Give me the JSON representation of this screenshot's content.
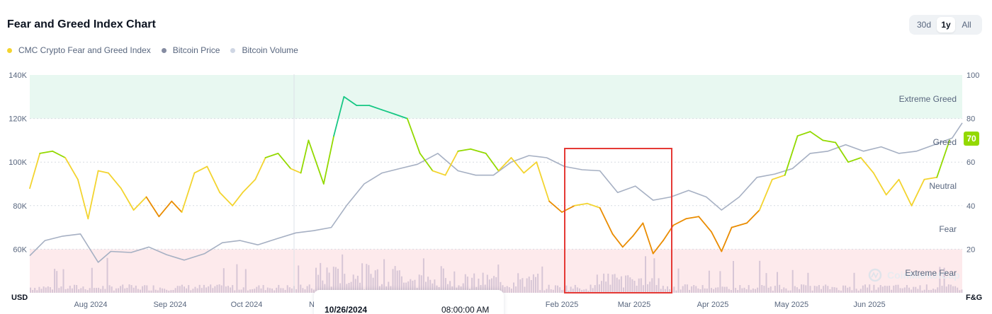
{
  "title": "Fear and Greed Index Chart",
  "range_buttons": [
    {
      "label": "30d",
      "active": false
    },
    {
      "label": "1y",
      "active": true
    },
    {
      "label": "All",
      "active": false
    }
  ],
  "legend": [
    {
      "label": "CMC Crypto Fear and Greed Index",
      "color": "#f3d42f"
    },
    {
      "label": "Bitcoin Price",
      "color": "#858ca2"
    },
    {
      "label": "Bitcoin Volume",
      "color": "#cfd6e4"
    }
  ],
  "current_index_badge": "70",
  "tooltip": {
    "date": "10/26/2024",
    "time": "08:00:00 AM"
  },
  "watermark": "CoinMarketCap",
  "colors": {
    "extreme_greed": "#16c784",
    "greed": "#93d900",
    "neutral": "#f3d42f",
    "fear": "#ea8c00",
    "extreme_fear": "#ea3943",
    "price_line": "#a6b0c3",
    "volume": "#d7c6d6",
    "highlight_box": "#e53935"
  },
  "chart_data": {
    "type": "line",
    "x_axis": {
      "ticks": [
        "Aug 2024",
        "Sep 2024",
        "Oct 2024",
        "N",
        "Feb 2025",
        "Mar 2025",
        "Apr 2025",
        "May 2025",
        "Jun 2025"
      ]
    },
    "y_left": {
      "unit": "USD",
      "ticks": [
        "140K",
        "120K",
        "100K",
        "80K",
        "60K"
      ],
      "range": [
        40000,
        140000
      ]
    },
    "y_right": {
      "unit": "F&G",
      "ticks": [
        "100",
        "80",
        "60",
        "40",
        "20"
      ],
      "range": [
        0,
        100
      ]
    },
    "zones": [
      {
        "label": "Extreme Greed",
        "range": [
          80,
          100
        ]
      },
      {
        "label": "Greed",
        "range": [
          60,
          80
        ]
      },
      {
        "label": "Neutral",
        "range": [
          40,
          60
        ]
      },
      {
        "label": "Fear",
        "range": [
          20,
          40
        ]
      },
      {
        "label": "Extreme Fear",
        "range": [
          0,
          20
        ]
      }
    ],
    "series": [
      {
        "name": "CMC Crypto Fear and Greed Index",
        "x": [
          "2024-07-09",
          "2024-07-13",
          "2024-07-18",
          "2024-07-23",
          "2024-07-28",
          "2024-08-01",
          "2024-08-05",
          "2024-08-09",
          "2024-08-14",
          "2024-08-19",
          "2024-08-24",
          "2024-08-29",
          "2024-09-03",
          "2024-09-07",
          "2024-09-12",
          "2024-09-17",
          "2024-09-22",
          "2024-09-27",
          "2024-10-01",
          "2024-10-06",
          "2024-10-10",
          "2024-10-15",
          "2024-10-20",
          "2024-10-24",
          "2024-10-27",
          "2024-11-02",
          "2024-11-06",
          "2024-11-10",
          "2024-11-15",
          "2024-11-20",
          "2024-11-25",
          "2024-11-30",
          "2024-12-05",
          "2024-12-10",
          "2024-12-15",
          "2024-12-20",
          "2024-12-25",
          "2024-12-30",
          "2025-01-05",
          "2025-01-10",
          "2025-01-15",
          "2025-01-20",
          "2025-01-25",
          "2025-01-30",
          "2025-02-04",
          "2025-02-09",
          "2025-02-14",
          "2025-02-19",
          "2025-02-24",
          "2025-02-28",
          "2025-03-04",
          "2025-03-08",
          "2025-03-12",
          "2025-03-16",
          "2025-03-20",
          "2025-03-25",
          "2025-03-30",
          "2025-04-04",
          "2025-04-08",
          "2025-04-12",
          "2025-04-18",
          "2025-04-23",
          "2025-04-28",
          "2025-05-03",
          "2025-05-08",
          "2025-05-13",
          "2025-05-18",
          "2025-05-23",
          "2025-05-28",
          "2025-06-02",
          "2025-06-07",
          "2025-06-12",
          "2025-06-17",
          "2025-06-22",
          "2025-06-27",
          "2025-07-02",
          "2025-07-07"
        ],
        "values": [
          48,
          64,
          65,
          62,
          52,
          34,
          56,
          55,
          48,
          38,
          44,
          35,
          42,
          37,
          55,
          58,
          46,
          40,
          46,
          52,
          62,
          64,
          57,
          55,
          70,
          50,
          72,
          90,
          86,
          86,
          84,
          82,
          80,
          64,
          56,
          54,
          65,
          66,
          64,
          56,
          62,
          55,
          60,
          42,
          37,
          40,
          41,
          39,
          27,
          21,
          26,
          32,
          18,
          24,
          31,
          34,
          35,
          28,
          19,
          30,
          32,
          38,
          52,
          54,
          72,
          74,
          70,
          69,
          60,
          62,
          55,
          45,
          52,
          40,
          52,
          53,
          70
        ],
        "color_by": "zone"
      },
      {
        "name": "Bitcoin Price",
        "x": [
          "2024-07-09",
          "2024-07-15",
          "2024-07-22",
          "2024-07-29",
          "2024-08-05",
          "2024-08-10",
          "2024-08-18",
          "2024-08-25",
          "2024-09-01",
          "2024-09-08",
          "2024-09-16",
          "2024-09-23",
          "2024-09-30",
          "2024-10-07",
          "2024-10-15",
          "2024-10-22",
          "2024-10-29",
          "2024-11-05",
          "2024-11-11",
          "2024-11-18",
          "2024-11-25",
          "2024-12-02",
          "2024-12-09",
          "2024-12-17",
          "2024-12-25",
          "2025-01-01",
          "2025-01-08",
          "2025-01-15",
          "2025-01-22",
          "2025-01-29",
          "2025-02-05",
          "2025-02-12",
          "2025-02-19",
          "2025-02-26",
          "2025-03-05",
          "2025-03-12",
          "2025-03-19",
          "2025-03-26",
          "2025-04-02",
          "2025-04-08",
          "2025-04-15",
          "2025-04-22",
          "2025-04-29",
          "2025-05-06",
          "2025-05-13",
          "2025-05-20",
          "2025-05-27",
          "2025-06-03",
          "2025-06-10",
          "2025-06-17",
          "2025-06-24",
          "2025-07-01",
          "2025-07-08",
          "2025-07-12"
        ],
        "values": [
          57000,
          64000,
          66000,
          67000,
          54000,
          59000,
          58500,
          61000,
          57500,
          55000,
          58000,
          63000,
          64000,
          62000,
          65000,
          67500,
          68500,
          70000,
          80000,
          90000,
          95000,
          97000,
          99000,
          104000,
          96000,
          94000,
          94000,
          100000,
          103000,
          102000,
          98000,
          96500,
          96000,
          86000,
          89000,
          82500,
          84000,
          87000,
          84000,
          78000,
          84000,
          93000,
          94500,
          97000,
          104000,
          105000,
          108000,
          105000,
          107000,
          104000,
          105000,
          108000,
          111000,
          118000
        ]
      }
    ],
    "volume_note": "Bitcoin Volume bars rendered along chart bottom (relative scale)"
  }
}
